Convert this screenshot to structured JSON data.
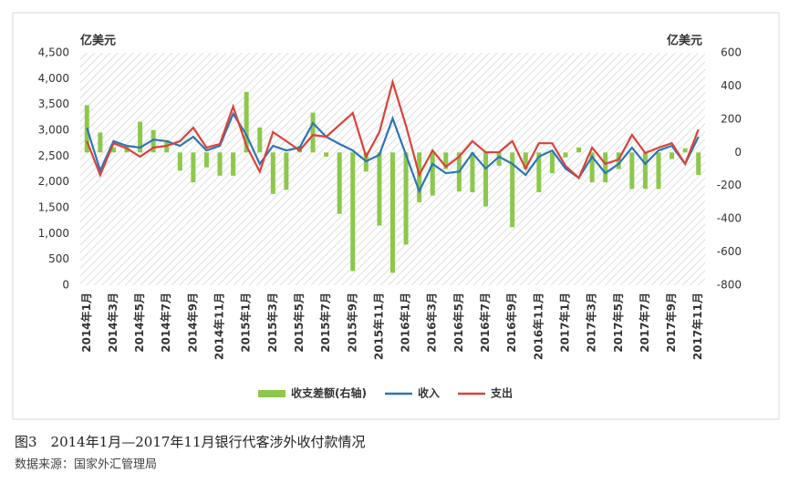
{
  "chart_data": {
    "type": "combo",
    "y_unit_left": "亿美元",
    "y_unit_right": "亿美元",
    "caption": "图3　2014年1月—2017年11月银行代客涉外收付款情况",
    "source": "数据来源：国家外汇管理局",
    "categories": [
      "2014年1月",
      null,
      "2014年3月",
      null,
      "2014年5月",
      null,
      "2014年7月",
      null,
      "2014年9月",
      null,
      "2014年11月",
      null,
      "2015年1月",
      null,
      "2015年3月",
      null,
      "2015年5月",
      null,
      "2015年7月",
      null,
      "2015年9月",
      null,
      "2015年11月",
      null,
      "2016年1月",
      null,
      "2016年3月",
      null,
      "2016年5月",
      null,
      "2016年7月",
      null,
      "2016年9月",
      null,
      "2016年11月",
      null,
      "2017年1月",
      null,
      "2017年3月",
      null,
      "2017年5月",
      null,
      "2017年7月",
      null,
      "2017年9月",
      null,
      "2017年11月"
    ],
    "series": [
      {
        "name": "收支差额(右轴)",
        "kind": "bar",
        "axis": "y2",
        "color": "#8cc84b",
        "values": [
          285,
          120,
          30,
          40,
          185,
          135,
          75,
          -110,
          -180,
          -90,
          -140,
          -140,
          365,
          150,
          -250,
          -225,
          40,
          240,
          -25,
          -370,
          -715,
          -115,
          -440,
          -725,
          -555,
          -300,
          -260,
          -100,
          -235,
          -240,
          -325,
          -80,
          -450,
          -100,
          -240,
          -125,
          -30,
          30,
          -180,
          -180,
          -100,
          -220,
          -220,
          -220,
          -40,
          25,
          -135
        ]
      },
      {
        "name": "收入",
        "kind": "line",
        "color": "#2e75b6",
        "values": [
          3050,
          2220,
          2790,
          2700,
          2665,
          2820,
          2790,
          2700,
          2875,
          2610,
          2700,
          3320,
          2910,
          2350,
          2700,
          2610,
          2665,
          3140,
          2875,
          2735,
          2610,
          2400,
          2525,
          3230,
          2525,
          1820,
          2350,
          2170,
          2200,
          2560,
          2260,
          2490,
          2350,
          2135,
          2490,
          2610,
          2260,
          2080,
          2490,
          2170,
          2350,
          2665,
          2350,
          2610,
          2700,
          2350,
          2875
        ]
      },
      {
        "name": "支出",
        "kind": "line",
        "color": "#d9423a",
        "values": [
          2790,
          2135,
          2750,
          2650,
          2490,
          2665,
          2700,
          2790,
          3050,
          2665,
          2735,
          3460,
          2700,
          2200,
          2965,
          2790,
          2610,
          2910,
          2875,
          3105,
          3335,
          2490,
          2965,
          3935,
          3090,
          2135,
          2610,
          2295,
          2490,
          2790,
          2575,
          2575,
          2790,
          2260,
          2750,
          2750,
          2310,
          2080,
          2665,
          2350,
          2435,
          2910,
          2560,
          2665,
          2750,
          2350,
          3015
        ]
      }
    ],
    "ylim": [
      0,
      4500
    ],
    "yticks": [
      0,
      {
        "value": 500,
        "label": "500"
      },
      {
        "value": 1000,
        "label": "1,000"
      },
      {
        "value": 1500,
        "label": "1,500"
      },
      {
        "value": 2000,
        "label": "2,000"
      },
      {
        "value": 2500,
        "label": "2,500"
      },
      {
        "value": 3000,
        "label": "3,000"
      },
      {
        "value": 3500,
        "label": "3,500"
      },
      {
        "value": 4000,
        "label": "4,000"
      },
      {
        "value": 4500,
        "label": "4,500"
      }
    ],
    "y2lim": [
      -800,
      600
    ],
    "y2ticks": [
      -800,
      -600,
      -400,
      -200,
      0,
      200,
      400,
      600
    ]
  }
}
